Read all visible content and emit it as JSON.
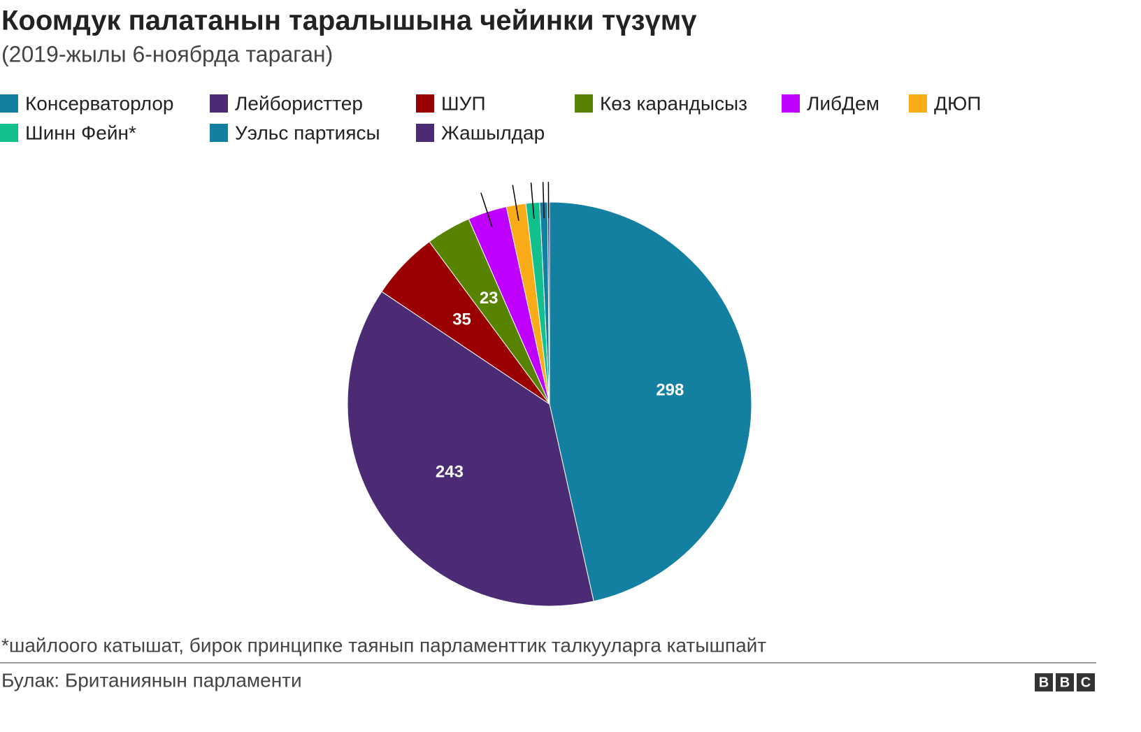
{
  "chart_data": {
    "type": "pie",
    "title": "Коомдук палатанын таралышына чейинки түзүмү",
    "subtitle": "(2019-жылы 6-ноябрда тараган)",
    "categories": [
      "Консерваторлор",
      "Лейбористтер",
      "ШУП",
      "Көз карандысыз",
      "ЛибДем",
      "ДЮП",
      "Шинн Фейн*",
      "Уэльс партиясы",
      "Жашылдар"
    ],
    "values": [
      298,
      243,
      35,
      23,
      20,
      10,
      7,
      4,
      1
    ],
    "colors": [
      "#1380a1",
      "#4b2c74",
      "#990000",
      "#588300",
      "#bf00ff",
      "#faab18",
      "#12c08e",
      "#1380a1",
      "#4b2c74"
    ],
    "note": "*шайлоого катышат, бирок принципке таянып парламенттик талкууларга катышпайт",
    "source": "Булак: Британиянын парламенти",
    "logo": [
      "B",
      "B",
      "C"
    ]
  }
}
